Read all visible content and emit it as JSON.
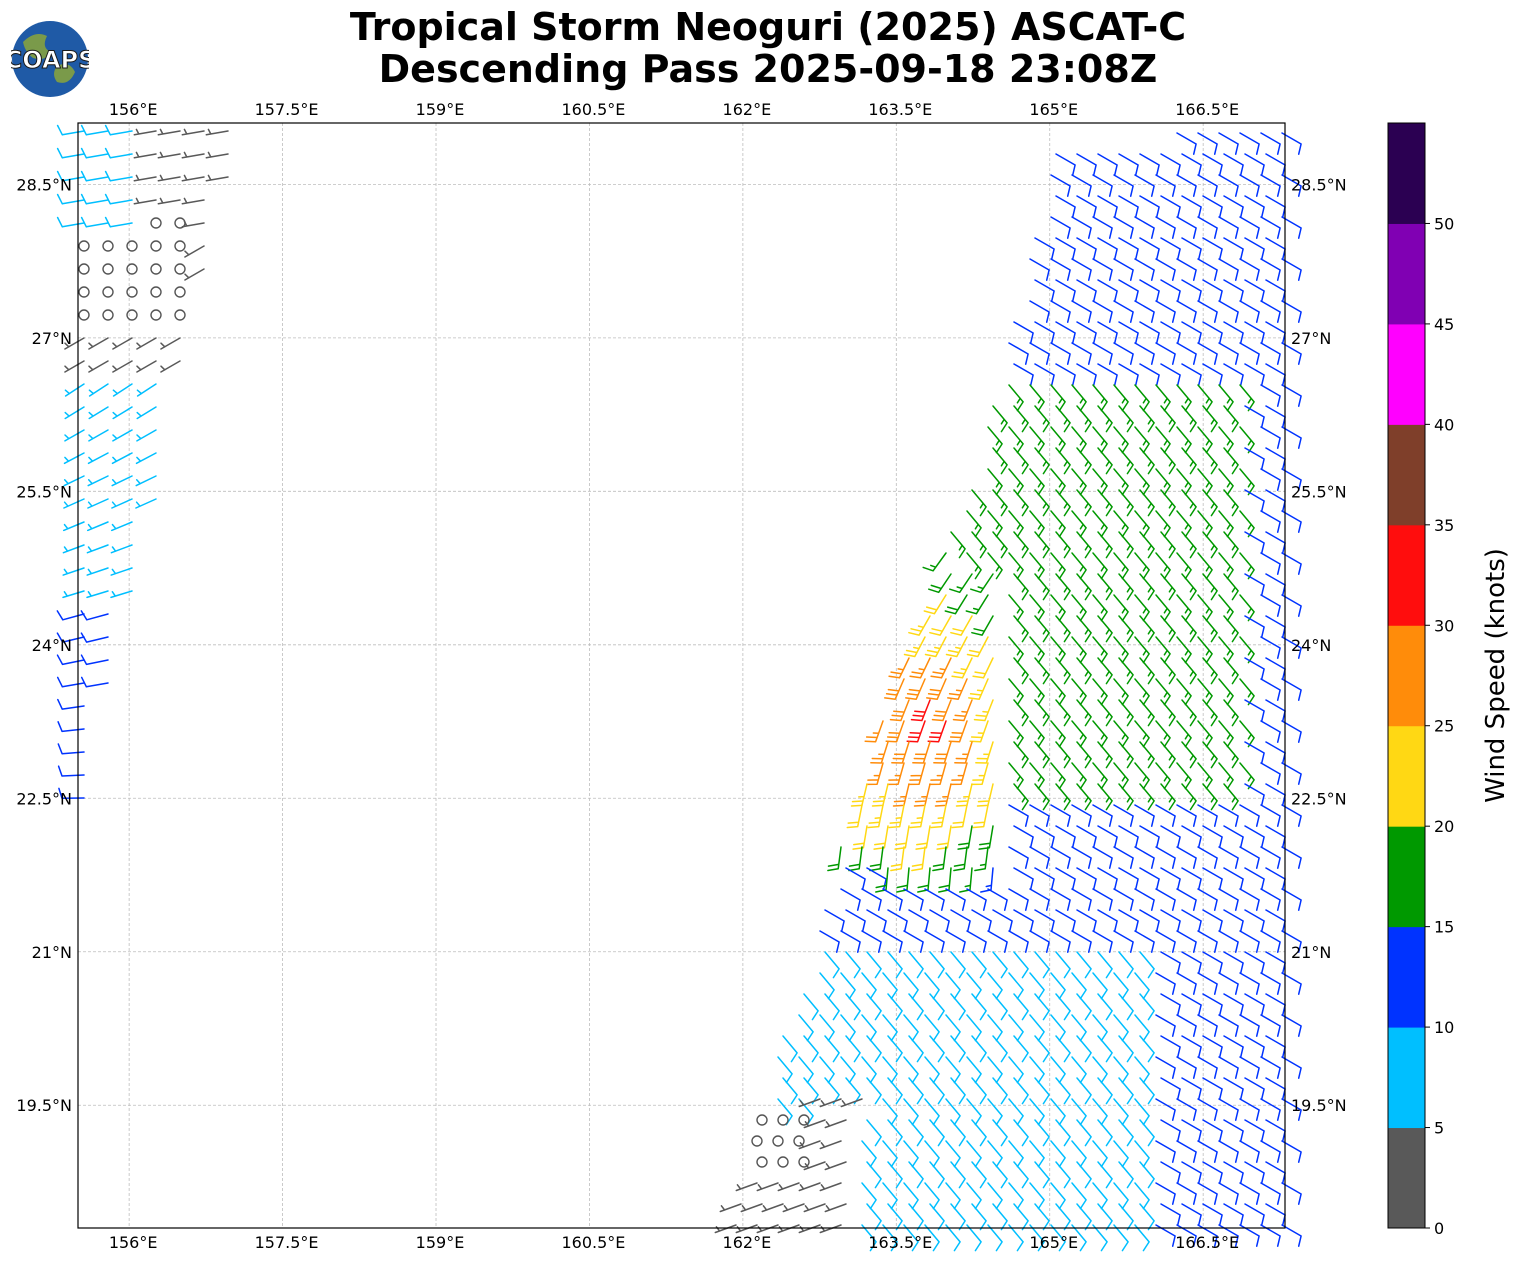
{
  "title": {
    "line1": "Tropical Storm Neoguri (2025) ASCAT-C",
    "line2": "Descending Pass 2025-09-18 23:08Z"
  },
  "logo": {
    "text": "COAPS",
    "icon": "globe-icon"
  },
  "chart_data": {
    "type": "wind-barb-map",
    "xlabel": "",
    "ylabel": "",
    "lon_range": [
      155.5,
      167.3
    ],
    "lat_range": [
      18.3,
      29.1
    ],
    "lon_ticks": [
      156,
      157.5,
      159,
      160.5,
      162,
      163.5,
      165,
      166.5
    ],
    "lon_tick_labels": [
      "156°E",
      "157.5°E",
      "159°E",
      "160.5°E",
      "162°E",
      "163.5°E",
      "165°E",
      "166.5°E"
    ],
    "lat_ticks": [
      19.5,
      21,
      22.5,
      24,
      25.5,
      27,
      28.5
    ],
    "lat_tick_labels": [
      "19.5°N",
      "21°N",
      "22.5°N",
      "24°N",
      "25.5°N",
      "27°N",
      "28.5°N"
    ],
    "grid": true,
    "colorbar": {
      "label": "Wind Speed (knots)",
      "bounds": [
        0,
        5,
        10,
        15,
        20,
        25,
        30,
        35,
        40,
        45,
        50,
        55
      ],
      "tick_labels": [
        "0",
        "5",
        "10",
        "15",
        "20",
        "25",
        "30",
        "35",
        "40",
        "45",
        "50"
      ],
      "colors": [
        "#595959",
        "#00bfff",
        "#0033ff",
        "#009900",
        "#ffd814",
        "#ff8c0a",
        "#ff0d0d",
        "#7f3f2a",
        "#ff00ff",
        "#8000b3",
        "#2b0052"
      ]
    },
    "swaths": [
      {
        "name": "west",
        "polygon": [
          [
            155.5,
            29.1
          ],
          [
            157.1,
            29.1
          ],
          [
            156.6,
            27.1
          ],
          [
            156.2,
            25.0
          ],
          [
            155.8,
            23.5
          ],
          [
            155.6,
            22.4
          ],
          [
            155.5,
            22.4
          ]
        ],
        "calm_region": [
          [
            155.5,
            28.0
          ],
          [
            156.6,
            28.2
          ],
          [
            156.5,
            27.0
          ],
          [
            155.5,
            27.0
          ]
        ],
        "barb_directions_deg": {
          "south": 270,
          "mid": 240,
          "north": 260
        },
        "speed_knots": {
          "south": 7,
          "mid": 3,
          "north": 8
        }
      },
      {
        "name": "east",
        "polygon": [
          [
            165.0,
            28.9
          ],
          [
            167.3,
            29.1
          ],
          [
            167.3,
            18.3
          ],
          [
            161.9,
            18.3
          ],
          [
            162.5,
            20.6
          ],
          [
            163.1,
            22.5
          ],
          [
            164.2,
            25.7
          ]
        ],
        "calm_region": [
          [
            161.9,
            19.5
          ],
          [
            163.2,
            19.6
          ],
          [
            163.0,
            18.3
          ],
          [
            161.9,
            18.3
          ]
        ],
        "storm_center": [
          163.9,
          23.3
        ],
        "barb_directions_deg": {
          "general": 120,
          "core": 200
        },
        "speed_knots": {
          "north": 12,
          "mid": 17,
          "south": 8,
          "core_max": 32
        }
      }
    ]
  }
}
